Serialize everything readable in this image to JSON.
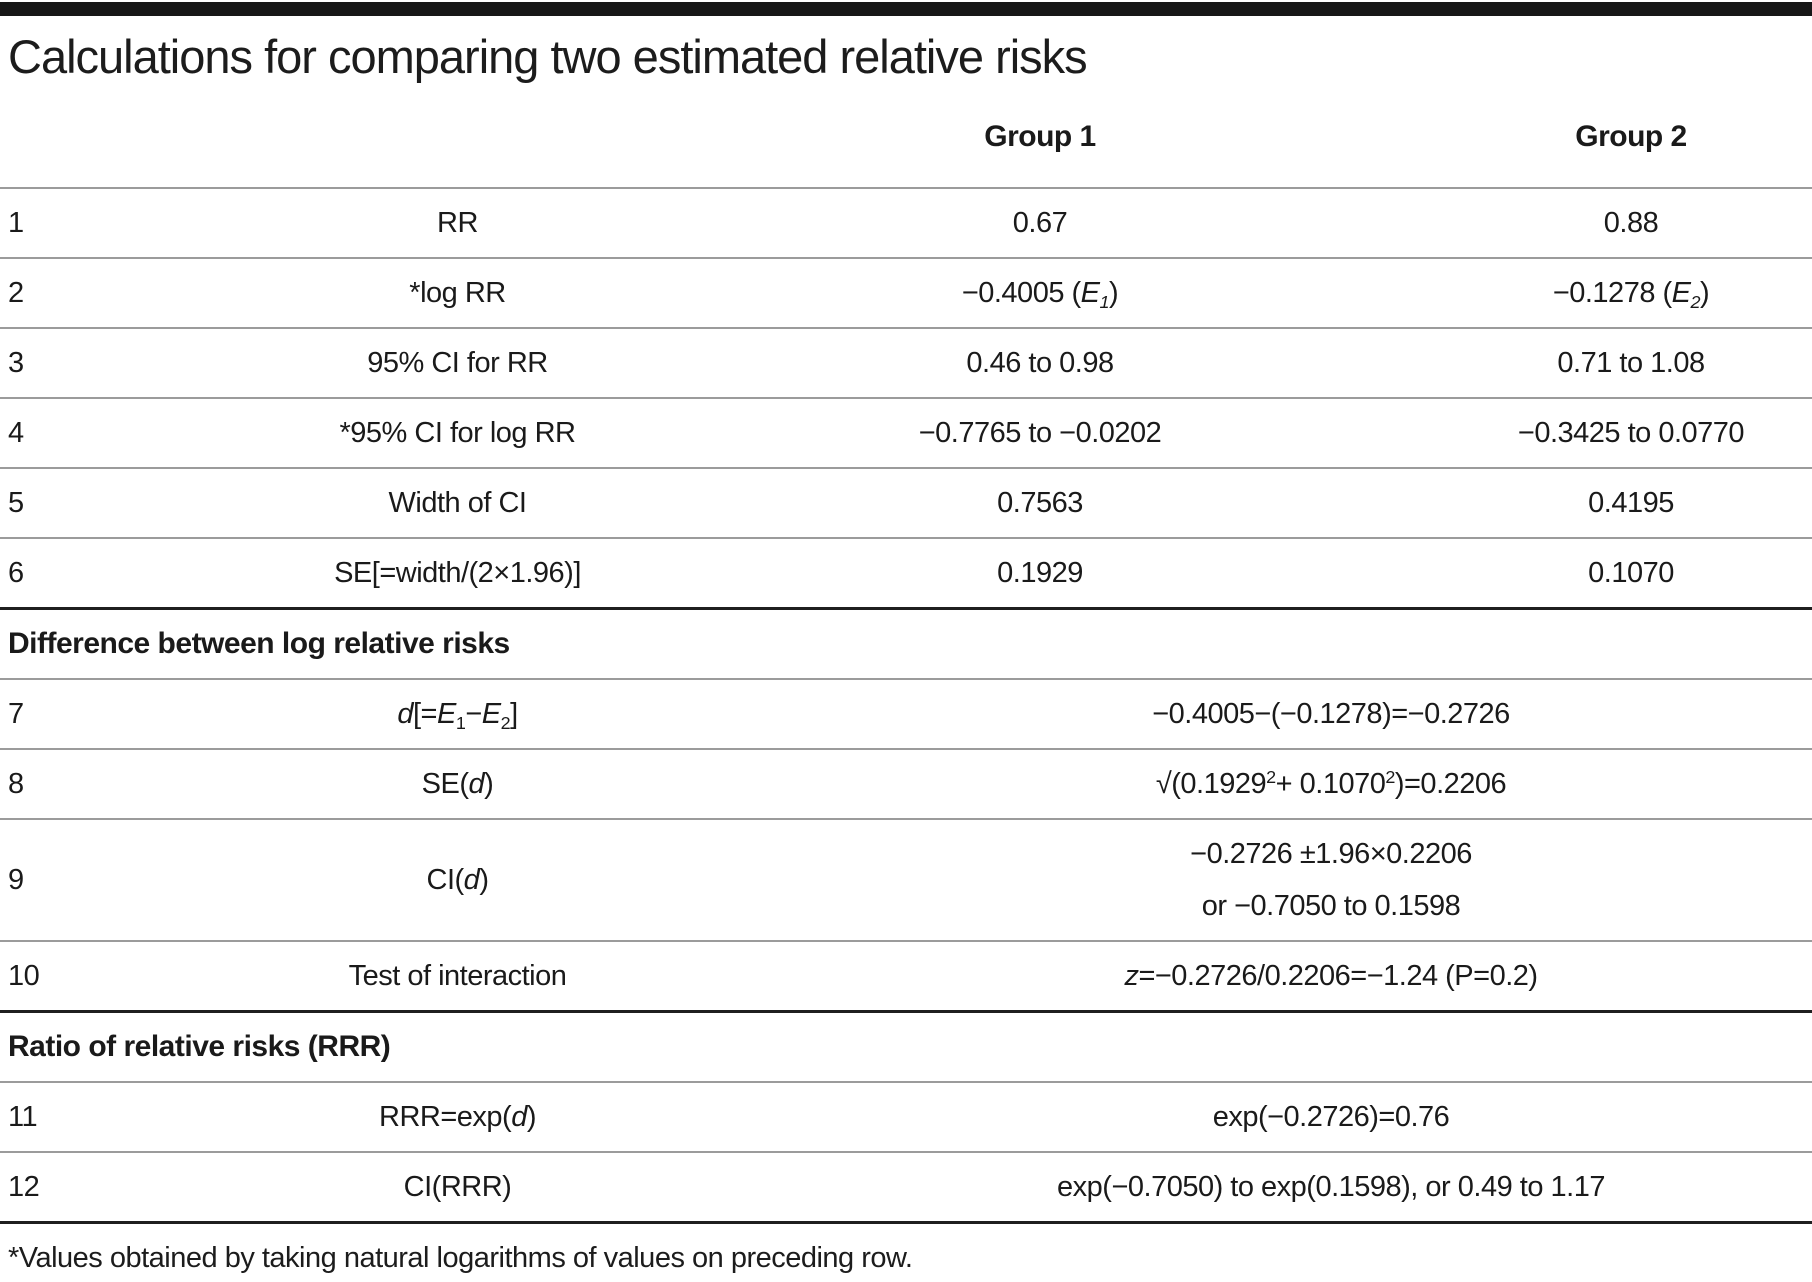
{
  "title": "Calculations for comparing two estimated relative risks",
  "columns": {
    "group1": "Group 1",
    "group2": "Group 2"
  },
  "rows": [
    {
      "num": "1",
      "label": "RR",
      "g1": "0.67",
      "g2": "0.88"
    },
    {
      "num": "2",
      "label": "*log RR",
      "g1": [
        {
          "t": "−0.4005 ("
        },
        {
          "t": "E",
          "s": "i"
        },
        {
          "t": "1",
          "s": "isub"
        },
        {
          "t": ")"
        }
      ],
      "g2": [
        {
          "t": "−0.1278 ("
        },
        {
          "t": "E",
          "s": "i"
        },
        {
          "t": "2",
          "s": "isub"
        },
        {
          "t": ")"
        }
      ]
    },
    {
      "num": "3",
      "label": "95% CI for RR",
      "g1": "0.46 to 0.98",
      "g2": "0.71 to 1.08"
    },
    {
      "num": "4",
      "label": "*95% CI for log RR",
      "g1": "−0.7765 to −0.0202",
      "g2": "−0.3425 to 0.0770"
    },
    {
      "num": "5",
      "label": "Width of CI",
      "g1": "0.7563",
      "g2": "0.4195"
    },
    {
      "num": "6",
      "label": "SE[=width/(2×1.96)]",
      "g1": "0.1929",
      "g2": "0.1070"
    },
    {
      "section": "Difference between log relative risks"
    },
    {
      "num": "7",
      "label": [
        {
          "t": "d",
          "s": "i"
        },
        {
          "t": "[="
        },
        {
          "t": "E",
          "s": "i"
        },
        {
          "t": "1",
          "s": "sub"
        },
        {
          "t": "−"
        },
        {
          "t": "E",
          "s": "i"
        },
        {
          "t": "2",
          "s": "sub"
        },
        {
          "t": "]"
        }
      ],
      "merged": "−0.4005−(−0.1278)=−0.2726"
    },
    {
      "num": "8",
      "label": [
        {
          "t": "SE("
        },
        {
          "t": "d",
          "s": "i"
        },
        {
          "t": ")"
        }
      ],
      "merged": [
        {
          "t": "√(0.1929"
        },
        {
          "t": "2",
          "s": "sup"
        },
        {
          "t": "+ 0.1070"
        },
        {
          "t": "2",
          "s": "sup"
        },
        {
          "t": ")=0.2206"
        }
      ]
    },
    {
      "num": "9",
      "label": [
        {
          "t": "CI("
        },
        {
          "t": "d",
          "s": "i"
        },
        {
          "t": ")"
        }
      ],
      "merged": [
        {
          "t": "−0.2726 ±1.96×0.2206"
        },
        {
          "br": true
        },
        {
          "t": "or −0.7050 to 0.1598"
        }
      ]
    },
    {
      "num": "10",
      "label": "Test of interaction",
      "merged": [
        {
          "t": "z",
          "s": "i"
        },
        {
          "t": "=−0.2726/0.2206=−1.24 (P=0.2)"
        }
      ]
    },
    {
      "section": "Ratio of relative risks (RRR)"
    },
    {
      "num": "11",
      "label": [
        {
          "t": "RRR=exp("
        },
        {
          "t": "d",
          "s": "i"
        },
        {
          "t": ")"
        }
      ],
      "merged": "exp(−0.2726)=0.76"
    },
    {
      "num": "12",
      "label": "CI(RRR)",
      "merged": "exp(−0.7050) to exp(0.1598), or 0.49 to 1.17"
    }
  ],
  "footnote": "*Values obtained by taking natural logarithms of values on preceding row.",
  "colors": {
    "rule_light": "#9b9b9b",
    "rule_dark": "#1f1f1f",
    "top_bar": "#171717",
    "text": "#1a1a1a"
  }
}
